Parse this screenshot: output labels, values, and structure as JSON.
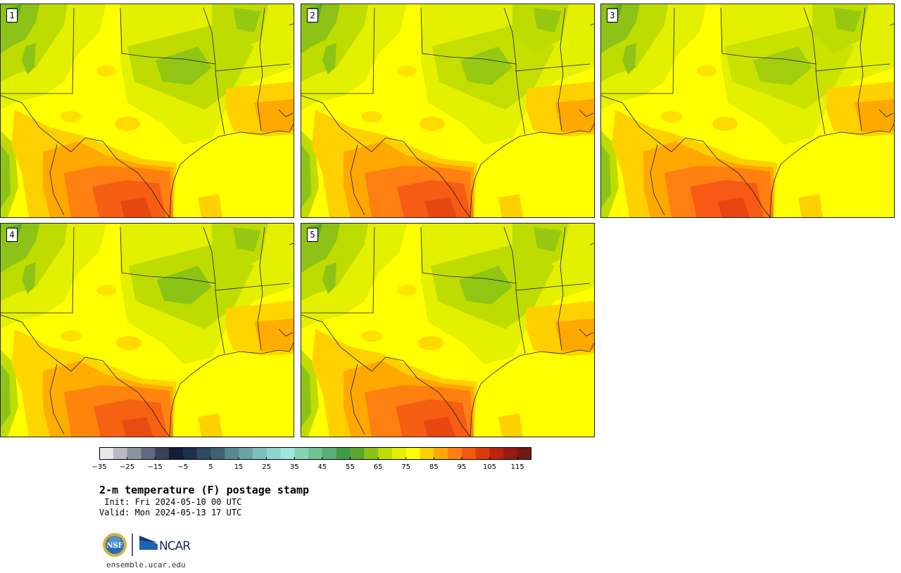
{
  "panels": [
    {
      "label": "1",
      "variant": 1
    },
    {
      "label": "2",
      "variant": 2
    },
    {
      "label": "3",
      "variant": 3
    },
    {
      "label": "4",
      "variant": 4
    },
    {
      "label": "5",
      "variant": 5
    }
  ],
  "colorbar": {
    "min": -35,
    "max": 120,
    "step": 5,
    "tick_labels": [
      "−35",
      "−25",
      "−15",
      "−5",
      "5",
      "15",
      "25",
      "35",
      "45",
      "55",
      "65",
      "75",
      "85",
      "95",
      "105",
      "115"
    ],
    "colors": [
      "#e6e8ec",
      "#b7bac4",
      "#8e93a3",
      "#626a80",
      "#38405c",
      "#141c38",
      "#1f2f4a",
      "#2d4a5e",
      "#3e6272",
      "#568a8f",
      "#6aa3a5",
      "#7cbfbb",
      "#8cd6cc",
      "#9ee8dc",
      "#86d4b0",
      "#6ec294",
      "#58b078",
      "#419a48",
      "#5aa82a",
      "#8cc316",
      "#bfdc00",
      "#e3f000",
      "#ffff00",
      "#ffd000",
      "#ffa800",
      "#ff7f10",
      "#f55814",
      "#dd3a10",
      "#bc2410",
      "#961a10",
      "#701a10"
    ]
  },
  "colors": {
    "base": "#ffff00",
    "green_light": "#e3f000",
    "green_mid": "#bfdc00",
    "green_dark": "#8cc316",
    "green_deep": "#5aa82a",
    "orange_light": "#ffd000",
    "orange": "#ffa800",
    "orange_dark": "#ff7f10",
    "red": "#f55814",
    "red_dark": "#dd3a10"
  },
  "title": "2-m temperature (F) postage stamp",
  "init_line": " Init: Fri 2024-05-10 00 UTC",
  "valid_line": "Valid: Mon 2024-05-13 17 UTC",
  "logos": {
    "nsf": "NSF",
    "ncar": "NCAR"
  },
  "website": "ensemble.ucar.edu"
}
